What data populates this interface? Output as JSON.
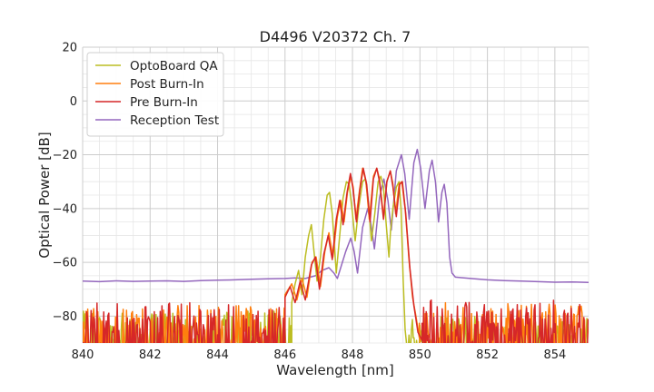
{
  "chart_data": {
    "type": "line",
    "title": "D4496 V20372 Ch. 7",
    "xlabel": "Wavelength [nm]",
    "ylabel": "Optical Power [dB]",
    "xlim": [
      840,
      855
    ],
    "ylim": [
      -90,
      20
    ],
    "xticks": [
      840,
      842,
      844,
      846,
      848,
      850,
      852,
      854
    ],
    "yticks": [
      20,
      0,
      -20,
      -40,
      -60,
      -80
    ],
    "xtick_labels": [
      "840",
      "842",
      "844",
      "846",
      "848",
      "850",
      "852",
      "854"
    ],
    "ytick_labels": [
      "20",
      "0",
      "−20",
      "−40",
      "−60",
      "−80"
    ],
    "grid": true,
    "minor_grid": true,
    "legend_position": "top-left",
    "series": [
      {
        "name": "OptoBoard QA",
        "color": "#bcbd22",
        "noise_floor": {
          "x_range": [
            840,
            846.2
          ],
          "level": -85,
          "amplitude": 7
        },
        "points": [
          [
            846.2,
            -75
          ],
          [
            846.3,
            -68
          ],
          [
            846.4,
            -63
          ],
          [
            846.5,
            -72
          ],
          [
            846.6,
            -58
          ],
          [
            846.7,
            -50
          ],
          [
            846.78,
            -46
          ],
          [
            846.85,
            -55
          ],
          [
            846.95,
            -67
          ],
          [
            847.05,
            -58
          ],
          [
            847.15,
            -44
          ],
          [
            847.25,
            -35
          ],
          [
            847.32,
            -34
          ],
          [
            847.4,
            -42
          ],
          [
            847.52,
            -64
          ],
          [
            847.62,
            -50
          ],
          [
            847.72,
            -36
          ],
          [
            847.82,
            -30
          ],
          [
            847.9,
            -31
          ],
          [
            848.0,
            -42
          ],
          [
            848.08,
            -52
          ],
          [
            848.18,
            -40
          ],
          [
            848.3,
            -30
          ],
          [
            848.38,
            -29
          ],
          [
            848.46,
            -36
          ],
          [
            848.56,
            -52
          ],
          [
            848.66,
            -42
          ],
          [
            848.76,
            -30
          ],
          [
            848.84,
            -28
          ],
          [
            848.92,
            -32
          ],
          [
            849.0,
            -46
          ],
          [
            849.08,
            -58
          ],
          [
            849.13,
            -48
          ],
          [
            849.2,
            -40
          ],
          [
            849.3,
            -32
          ],
          [
            849.38,
            -30
          ],
          [
            849.44,
            -40
          ],
          [
            849.5,
            -66
          ],
          [
            849.56,
            -85
          ],
          [
            849.6,
            -90
          ]
        ],
        "tail_noise": {
          "x_range": [
            849.6,
            855
          ],
          "level": -85,
          "amplitude": 5
        }
      },
      {
        "name": "Post Burn-In",
        "color": "#ff7f0e",
        "noise_floor": {
          "x_range": [
            840,
            846.0
          ],
          "level": -84,
          "amplitude": 8
        },
        "points": [
          [
            846.0,
            -72
          ],
          [
            846.2,
            -68
          ],
          [
            846.35,
            -74
          ],
          [
            846.5,
            -66
          ],
          [
            846.65,
            -73
          ],
          [
            846.8,
            -60
          ],
          [
            846.92,
            -58
          ],
          [
            847.05,
            -69
          ],
          [
            847.18,
            -56
          ],
          [
            847.3,
            -49
          ],
          [
            847.42,
            -58
          ],
          [
            847.55,
            -43
          ],
          [
            847.65,
            -37
          ],
          [
            847.75,
            -45
          ],
          [
            847.85,
            -34
          ],
          [
            847.95,
            -28
          ],
          [
            848.02,
            -32
          ],
          [
            848.1,
            -44
          ],
          [
            848.2,
            -34
          ],
          [
            848.3,
            -25
          ],
          [
            848.4,
            -30
          ],
          [
            848.5,
            -44
          ],
          [
            848.62,
            -28
          ],
          [
            848.72,
            -25
          ],
          [
            848.8,
            -29
          ],
          [
            848.92,
            -43
          ],
          [
            849.02,
            -30
          ],
          [
            849.12,
            -26
          ],
          [
            849.2,
            -31
          ],
          [
            849.28,
            -42
          ],
          [
            849.38,
            -31
          ],
          [
            849.46,
            -30
          ],
          [
            849.56,
            -40
          ],
          [
            849.68,
            -60
          ],
          [
            849.78,
            -73
          ],
          [
            849.88,
            -80
          ],
          [
            849.98,
            -88
          ]
        ],
        "tail_noise": {
          "x_range": [
            849.98,
            855
          ],
          "level": -83,
          "amplitude": 8
        }
      },
      {
        "name": "Pre Burn-In",
        "color": "#d62728",
        "noise_floor": {
          "x_range": [
            840,
            846.0
          ],
          "level": -84,
          "amplitude": 9
        },
        "points": [
          [
            846.0,
            -73
          ],
          [
            846.15,
            -69
          ],
          [
            846.3,
            -75
          ],
          [
            846.45,
            -67
          ],
          [
            846.6,
            -74
          ],
          [
            846.78,
            -61
          ],
          [
            846.9,
            -58
          ],
          [
            847.02,
            -70
          ],
          [
            847.15,
            -57
          ],
          [
            847.28,
            -50
          ],
          [
            847.4,
            -59
          ],
          [
            847.52,
            -44
          ],
          [
            847.62,
            -37
          ],
          [
            847.72,
            -46
          ],
          [
            847.84,
            -34
          ],
          [
            847.94,
            -27
          ],
          [
            848.02,
            -33
          ],
          [
            848.12,
            -45
          ],
          [
            848.22,
            -33
          ],
          [
            848.32,
            -25
          ],
          [
            848.42,
            -31
          ],
          [
            848.52,
            -45
          ],
          [
            848.62,
            -29
          ],
          [
            848.72,
            -25
          ],
          [
            848.8,
            -30
          ],
          [
            848.92,
            -44
          ],
          [
            849.02,
            -30
          ],
          [
            849.12,
            -26
          ],
          [
            849.2,
            -32
          ],
          [
            849.3,
            -43
          ],
          [
            849.4,
            -31
          ],
          [
            849.48,
            -30
          ],
          [
            849.58,
            -42
          ],
          [
            849.7,
            -62
          ],
          [
            849.82,
            -76
          ],
          [
            849.94,
            -86
          ],
          [
            850.06,
            -89
          ]
        ],
        "tail_noise": {
          "x_range": [
            850.06,
            855
          ],
          "level": -83,
          "amplitude": 9
        }
      },
      {
        "name": "Reception Test",
        "color": "#9467bd",
        "points": [
          [
            840,
            -67
          ],
          [
            840.5,
            -67.2
          ],
          [
            841,
            -66.9
          ],
          [
            841.5,
            -67.1
          ],
          [
            842,
            -67
          ],
          [
            842.5,
            -66.9
          ],
          [
            843,
            -67.1
          ],
          [
            843.5,
            -66.8
          ],
          [
            844,
            -66.6
          ],
          [
            844.5,
            -66.5
          ],
          [
            845,
            -66.3
          ],
          [
            845.5,
            -66.1
          ],
          [
            846,
            -66
          ],
          [
            846.3,
            -65.8
          ],
          [
            846.6,
            -66
          ],
          [
            846.9,
            -65
          ],
          [
            847.1,
            -63
          ],
          [
            847.3,
            -62
          ],
          [
            847.45,
            -64
          ],
          [
            847.55,
            -66
          ],
          [
            847.65,
            -62
          ],
          [
            847.8,
            -56
          ],
          [
            847.95,
            -51
          ],
          [
            848.05,
            -56
          ],
          [
            848.15,
            -64
          ],
          [
            848.3,
            -47
          ],
          [
            848.45,
            -40
          ],
          [
            848.55,
            -46
          ],
          [
            848.65,
            -55
          ],
          [
            848.8,
            -36
          ],
          [
            848.93,
            -29
          ],
          [
            849.05,
            -37
          ],
          [
            849.15,
            -48
          ],
          [
            849.3,
            -26
          ],
          [
            849.45,
            -20
          ],
          [
            849.55,
            -27
          ],
          [
            849.68,
            -44
          ],
          [
            849.82,
            -23
          ],
          [
            849.92,
            -18
          ],
          [
            850.02,
            -25
          ],
          [
            850.15,
            -40
          ],
          [
            850.28,
            -26
          ],
          [
            850.36,
            -22
          ],
          [
            850.46,
            -30
          ],
          [
            850.55,
            -45
          ],
          [
            850.65,
            -34
          ],
          [
            850.72,
            -31
          ],
          [
            850.8,
            -38
          ],
          [
            850.88,
            -58
          ],
          [
            850.95,
            -64
          ],
          [
            851.05,
            -65.5
          ],
          [
            851.5,
            -66
          ],
          [
            852,
            -66.5
          ],
          [
            852.5,
            -66.8
          ],
          [
            853,
            -67
          ],
          [
            853.5,
            -67.2
          ],
          [
            854,
            -67.4
          ],
          [
            854.5,
            -67.3
          ],
          [
            855,
            -67.5
          ]
        ]
      }
    ]
  }
}
